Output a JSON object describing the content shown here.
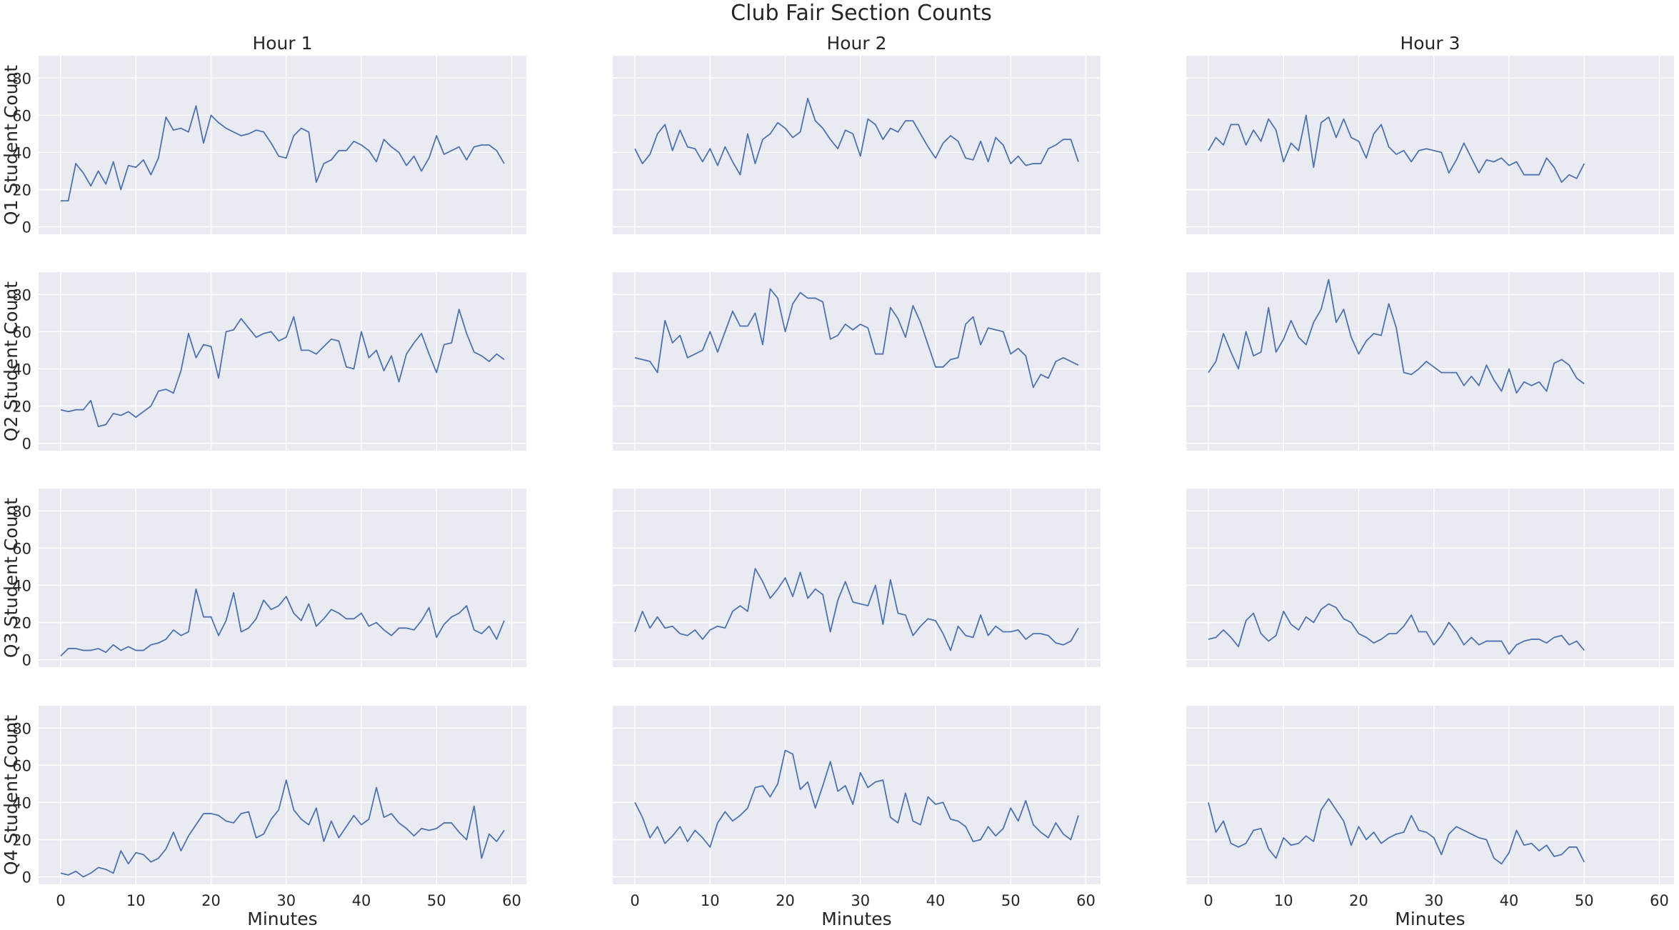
{
  "chart_data": {
    "type": "line",
    "title": "Club Fair Section Counts",
    "xlabel": "Minutes",
    "column_titles": [
      "Hour 1",
      "Hour 2",
      "Hour 3"
    ],
    "row_ylabels": [
      "Q1 Student Count",
      "Q2 Student Count",
      "Q3 Student Count",
      "Q4 Student Count"
    ],
    "xlim": [
      -2.95,
      61.95
    ],
    "ylim": [
      -4,
      92
    ],
    "xticks": [
      0,
      10,
      20,
      30,
      40,
      50,
      60
    ],
    "yticks": [
      0,
      20,
      40,
      60,
      80
    ],
    "grid": true,
    "line_color": "#4c72b0",
    "background_color": "#eaeaf2",
    "panels": [
      {
        "row": 0,
        "col": 0,
        "values": [
          14,
          14,
          34,
          29,
          22,
          30,
          23,
          35,
          20,
          33,
          32,
          36,
          28,
          37,
          59,
          52,
          53,
          51,
          65,
          45,
          60,
          56,
          53,
          51,
          49,
          50,
          52,
          51,
          45,
          38,
          37,
          49,
          53,
          51,
          24,
          34,
          36,
          41,
          41,
          46,
          44,
          41,
          35,
          47,
          43,
          40,
          33,
          38,
          30,
          37,
          49,
          39,
          41,
          43,
          36,
          43,
          44,
          44,
          41,
          34
        ]
      },
      {
        "row": 0,
        "col": 1,
        "values": [
          42,
          34,
          39,
          50,
          55,
          41,
          52,
          43,
          42,
          35,
          42,
          33,
          43,
          35,
          28,
          50,
          34,
          47,
          50,
          56,
          53,
          48,
          51,
          69,
          57,
          53,
          47,
          42,
          52,
          50,
          38,
          58,
          55,
          47,
          53,
          51,
          57,
          57,
          50,
          43,
          37,
          45,
          49,
          46,
          37,
          36,
          46,
          35,
          48,
          44,
          34,
          38,
          33,
          34,
          34,
          42,
          44,
          47,
          47,
          35
        ]
      },
      {
        "row": 0,
        "col": 2,
        "values": [
          41,
          48,
          44,
          55,
          55,
          44,
          52,
          46,
          58,
          52,
          35,
          45,
          41,
          60,
          32,
          56,
          59,
          48,
          58,
          48,
          46,
          37,
          50,
          55,
          43,
          39,
          41,
          35,
          41,
          42,
          41,
          40,
          29,
          36,
          45,
          37,
          29,
          36,
          35,
          37,
          33,
          35,
          28,
          28,
          28,
          37,
          32,
          24,
          28,
          26,
          34
        ]
      },
      {
        "row": 1,
        "col": 0,
        "values": [
          18,
          17,
          18,
          18,
          23,
          9,
          10,
          16,
          15,
          17,
          14,
          17,
          20,
          28,
          29,
          27,
          39,
          59,
          46,
          53,
          52,
          35,
          60,
          61,
          67,
          62,
          57,
          59,
          60,
          55,
          57,
          68,
          50,
          50,
          48,
          52,
          56,
          55,
          41,
          40,
          60,
          46,
          50,
          39,
          47,
          33,
          48,
          54,
          59,
          48,
          38,
          53,
          54,
          72,
          59,
          49,
          47,
          44,
          48,
          45
        ]
      },
      {
        "row": 1,
        "col": 1,
        "values": [
          46,
          45,
          44,
          38,
          66,
          54,
          58,
          46,
          48,
          50,
          60,
          49,
          60,
          71,
          63,
          63,
          70,
          53,
          83,
          78,
          60,
          75,
          81,
          78,
          78,
          76,
          56,
          58,
          64,
          61,
          64,
          62,
          48,
          48,
          73,
          67,
          57,
          74,
          65,
          53,
          41,
          41,
          45,
          46,
          64,
          68,
          53,
          62,
          61,
          60,
          48,
          51,
          47,
          30,
          37,
          35,
          44,
          46,
          44,
          42
        ]
      },
      {
        "row": 1,
        "col": 2,
        "values": [
          38,
          44,
          59,
          49,
          40,
          60,
          47,
          49,
          73,
          49,
          56,
          66,
          57,
          53,
          65,
          72,
          88,
          65,
          72,
          57,
          48,
          55,
          59,
          58,
          75,
          62,
          38,
          37,
          40,
          44,
          41,
          38,
          38,
          38,
          31,
          36,
          31,
          42,
          34,
          28,
          40,
          27,
          33,
          31,
          33,
          28,
          43,
          45,
          42,
          35,
          32
        ]
      },
      {
        "row": 2,
        "col": 0,
        "values": [
          2,
          6,
          6,
          5,
          5,
          6,
          4,
          8,
          5,
          7,
          5,
          5,
          8,
          9,
          11,
          16,
          13,
          15,
          38,
          23,
          23,
          13,
          21,
          36,
          15,
          17,
          22,
          32,
          27,
          29,
          34,
          25,
          21,
          30,
          18,
          22,
          27,
          25,
          22,
          22,
          25,
          18,
          20,
          16,
          13,
          17,
          17,
          16,
          21,
          28,
          12,
          19,
          23,
          25,
          29,
          16,
          14,
          18,
          11,
          21
        ]
      },
      {
        "row": 2,
        "col": 1,
        "values": [
          15,
          26,
          17,
          23,
          17,
          18,
          14,
          13,
          16,
          11,
          16,
          18,
          17,
          26,
          29,
          26,
          49,
          42,
          33,
          38,
          44,
          34,
          47,
          33,
          38,
          35,
          15,
          32,
          42,
          31,
          30,
          29,
          40,
          19,
          43,
          25,
          24,
          13,
          18,
          22,
          21,
          14,
          5,
          18,
          13,
          12,
          24,
          13,
          18,
          15,
          15,
          16,
          11,
          14,
          14,
          13,
          9,
          8,
          10,
          17
        ]
      },
      {
        "row": 2,
        "col": 2,
        "values": [
          11,
          12,
          16,
          12,
          7,
          21,
          25,
          14,
          10,
          13,
          26,
          19,
          16,
          23,
          20,
          27,
          30,
          28,
          22,
          20,
          14,
          12,
          9,
          11,
          14,
          14,
          18,
          24,
          15,
          15,
          8,
          13,
          20,
          15,
          8,
          12,
          8,
          10,
          10,
          10,
          3,
          8,
          10,
          11,
          11,
          9,
          12,
          13,
          8,
          10,
          5
        ]
      },
      {
        "row": 3,
        "col": 0,
        "values": [
          2,
          1,
          3,
          0,
          2,
          5,
          4,
          2,
          14,
          7,
          13,
          12,
          8,
          10,
          15,
          24,
          14,
          22,
          28,
          34,
          34,
          33,
          30,
          29,
          34,
          35,
          21,
          23,
          31,
          36,
          52,
          36,
          31,
          28,
          37,
          19,
          30,
          21,
          27,
          33,
          28,
          31,
          48,
          32,
          34,
          29,
          26,
          22,
          26,
          25,
          26,
          29,
          29,
          24,
          20,
          38,
          10,
          23,
          19,
          25
        ]
      },
      {
        "row": 3,
        "col": 1,
        "values": [
          40,
          32,
          21,
          27,
          18,
          22,
          27,
          19,
          25,
          21,
          16,
          29,
          35,
          30,
          33,
          37,
          48,
          49,
          43,
          50,
          68,
          66,
          47,
          51,
          37,
          49,
          62,
          46,
          49,
          39,
          56,
          48,
          51,
          52,
          32,
          29,
          45,
          30,
          28,
          43,
          39,
          40,
          31,
          30,
          27,
          19,
          20,
          27,
          22,
          26,
          37,
          30,
          41,
          28,
          24,
          21,
          29,
          23,
          20,
          33
        ]
      },
      {
        "row": 3,
        "col": 2,
        "values": [
          40,
          24,
          30,
          18,
          16,
          18,
          25,
          26,
          15,
          10,
          21,
          17,
          18,
          22,
          19,
          36,
          42,
          36,
          30,
          17,
          27,
          20,
          24,
          18,
          21,
          23,
          24,
          33,
          25,
          24,
          21,
          12,
          23,
          27,
          25,
          23,
          21,
          20,
          10,
          7,
          13,
          25,
          17,
          18,
          14,
          17,
          11,
          12,
          16,
          16,
          8
        ]
      }
    ]
  }
}
